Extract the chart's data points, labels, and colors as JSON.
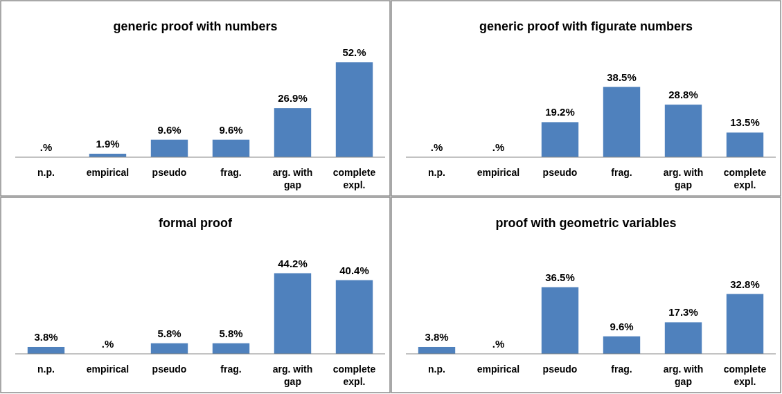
{
  "chart_data": [
    {
      "type": "bar",
      "title": "generic proof with numbers",
      "categories": [
        "n.p.",
        "empirical",
        "pseudo",
        "frag.",
        "arg. with gap",
        "complete expl."
      ],
      "values": [
        0,
        1.9,
        9.6,
        9.6,
        26.9,
        52
      ],
      "value_labels": [
        ".%",
        "1.9%",
        "9.6%",
        "9.6%",
        "26.9%",
        "52.%"
      ],
      "color": "#4f81bd"
    },
    {
      "type": "bar",
      "title": "generic proof with figurate numbers",
      "categories": [
        "n.p.",
        "empirical",
        "pseudo",
        "frag.",
        "arg. with gap",
        "complete expl."
      ],
      "values": [
        0,
        0,
        19.2,
        38.5,
        28.8,
        13.5
      ],
      "value_labels": [
        ".%",
        ".%",
        "19.2%",
        "38.5%",
        "28.8%",
        "13.5%"
      ],
      "color": "#4f81bd"
    },
    {
      "type": "bar",
      "title": "formal proof",
      "categories": [
        "n.p.",
        "empirical",
        "pseudo",
        "frag.",
        "arg. with gap",
        "complete expl."
      ],
      "values": [
        3.8,
        0,
        5.8,
        5.8,
        44.2,
        40.4
      ],
      "value_labels": [
        "3.8%",
        ".%",
        "5.8%",
        "5.8%",
        "44.2%",
        "40.4%"
      ],
      "color": "#4f81bd"
    },
    {
      "type": "bar",
      "title": "proof with geometric variables",
      "categories": [
        "n.p.",
        "empirical",
        "pseudo",
        "frag.",
        "arg. with gap",
        "complete expl."
      ],
      "values": [
        3.8,
        0,
        36.5,
        9.6,
        17.3,
        32.8
      ],
      "value_labels": [
        "3.8%",
        ".%",
        "36.5%",
        "9.6%",
        "17.3%",
        "32.8%"
      ],
      "color": "#4f81bd"
    }
  ]
}
